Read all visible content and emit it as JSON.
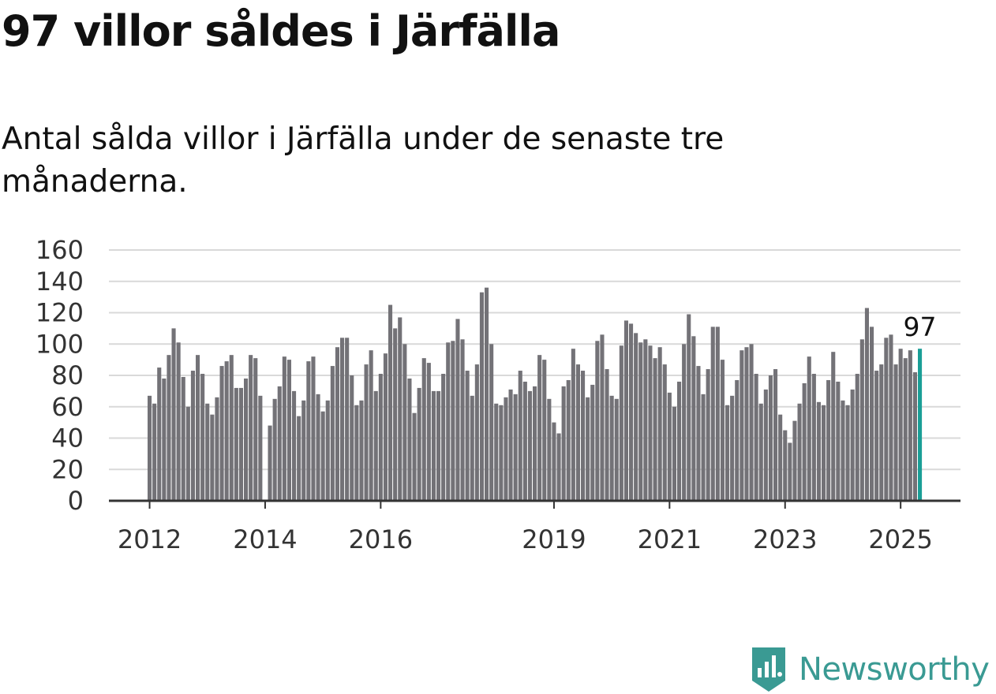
{
  "title": "97 villor såldes i Järfälla",
  "subtitle": "Antal sålda villor i Järfälla under de senaste tre månaderna.",
  "logo": {
    "name": "Newsworthy",
    "icon": "newsworthy-logo-icon"
  },
  "colors": {
    "bar": "#737277",
    "highlight": "#1a9e96",
    "grid": "#d9d9d9",
    "axis": "#333333",
    "logo": "#3a9a93"
  },
  "chart_data": {
    "type": "bar",
    "title": "97 villor såldes i Järfälla",
    "xlabel": "",
    "ylabel": "",
    "ylim": [
      0,
      160
    ],
    "yticks": [
      0,
      20,
      40,
      60,
      80,
      100,
      120,
      140,
      160
    ],
    "grid": true,
    "x_tick_labels": [
      {
        "label": "2012",
        "index": 0
      },
      {
        "label": "2014",
        "index": 24
      },
      {
        "label": "2016",
        "index": 48
      },
      {
        "label": "2019",
        "index": 84
      },
      {
        "label": "2021",
        "index": 108
      },
      {
        "label": "2023",
        "index": 132
      },
      {
        "label": "2025",
        "index": 156
      }
    ],
    "highlight_label": "97",
    "highlight_index": 160,
    "values": [
      67,
      62,
      85,
      78,
      93,
      110,
      101,
      79,
      60,
      83,
      93,
      81,
      62,
      55,
      66,
      86,
      89,
      93,
      72,
      72,
      78,
      93,
      91,
      67,
      0,
      48,
      65,
      73,
      92,
      90,
      70,
      54,
      64,
      89,
      92,
      68,
      57,
      64,
      86,
      98,
      104,
      104,
      80,
      61,
      64,
      87,
      96,
      70,
      81,
      94,
      125,
      110,
      117,
      100,
      78,
      56,
      72,
      91,
      88,
      70,
      70,
      81,
      101,
      102,
      116,
      103,
      83,
      67,
      87,
      133,
      136,
      100,
      62,
      61,
      66,
      71,
      68,
      83,
      76,
      70,
      73,
      93,
      90,
      65,
      50,
      43,
      73,
      77,
      97,
      87,
      83,
      66,
      74,
      102,
      106,
      84,
      67,
      65,
      99,
      115,
      113,
      107,
      101,
      103,
      99,
      91,
      98,
      87,
      69,
      60,
      76,
      100,
      119,
      105,
      86,
      68,
      84,
      111,
      111,
      90,
      61,
      67,
      77,
      96,
      98,
      100,
      81,
      62,
      71,
      80,
      84,
      55,
      45,
      37,
      51,
      62,
      75,
      92,
      81,
      63,
      61,
      77,
      95,
      76,
      64,
      61,
      71,
      81,
      103,
      123,
      111,
      83,
      87,
      104,
      106,
      87,
      97,
      91,
      96,
      82,
      97
    ]
  }
}
